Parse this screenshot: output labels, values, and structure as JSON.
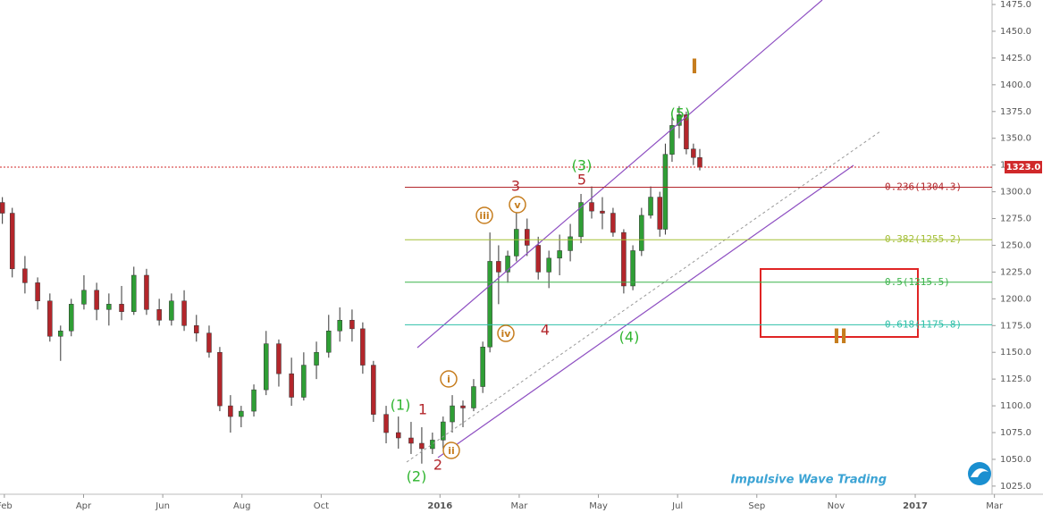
{
  "chart_data": {
    "type": "candlestick",
    "x": [
      0.95,
      1.2,
      1.52,
      1.84,
      2.15,
      2.42,
      2.69,
      3.01,
      3.33,
      3.64,
      3.96,
      4.27,
      4.59,
      4.91,
      5.22,
      5.54,
      5.85,
      6.17,
      6.44,
      6.71,
      6.98,
      7.3,
      7.61,
      7.93,
      8.25,
      8.56,
      8.88,
      9.19,
      9.47,
      9.78,
      10.05,
      10.32,
      10.64,
      10.95,
      11.27,
      11.54,
      11.81,
      12.08,
      12.31,
      12.58,
      12.85,
      13.08,
      13.26,
      13.48,
      13.71,
      13.93,
      14.2,
      14.48,
      14.75,
      15.02,
      15.29,
      15.56,
      15.83,
      16.1,
      16.37,
      16.64,
      16.87,
      17.09,
      17.32,
      17.55,
      17.69,
      17.86,
      18.04,
      18.22,
      18.4,
      18.56
    ],
    "open": [
      1290,
      1280,
      1228,
      1215,
      1198,
      1165,
      1170,
      1195,
      1208,
      1190,
      1195,
      1188,
      1222,
      1190,
      1180,
      1198,
      1175,
      1168,
      1150,
      1100,
      1090,
      1095,
      1115,
      1158,
      1130,
      1108,
      1138,
      1150,
      1170,
      1180,
      1172,
      1138,
      1092,
      1075,
      1070,
      1065,
      1060,
      1068,
      1085,
      1100,
      1098,
      1118,
      1155,
      1235,
      1225,
      1240,
      1265,
      1250,
      1225,
      1238,
      1245,
      1258,
      1290,
      1282,
      1280,
      1262,
      1212,
      1245,
      1278,
      1295,
      1265,
      1335,
      1362,
      1372,
      1340,
      1332
    ],
    "high": [
      1295,
      1285,
      1240,
      1220,
      1205,
      1175,
      1200,
      1222,
      1215,
      1205,
      1212,
      1230,
      1228,
      1200,
      1205,
      1208,
      1185,
      1175,
      1155,
      1110,
      1100,
      1120,
      1170,
      1162,
      1145,
      1150,
      1160,
      1185,
      1192,
      1190,
      1178,
      1142,
      1100,
      1090,
      1085,
      1080,
      1075,
      1090,
      1110,
      1105,
      1125,
      1160,
      1262,
      1250,
      1245,
      1280,
      1275,
      1258,
      1245,
      1260,
      1270,
      1298,
      1305,
      1295,
      1285,
      1265,
      1250,
      1285,
      1305,
      1300,
      1345,
      1370,
      1380,
      1375,
      1345,
      1340
    ],
    "low": [
      1270,
      1220,
      1205,
      1190,
      1160,
      1142,
      1165,
      1190,
      1180,
      1175,
      1180,
      1185,
      1185,
      1175,
      1175,
      1170,
      1160,
      1145,
      1095,
      1075,
      1080,
      1090,
      1110,
      1118,
      1100,
      1105,
      1125,
      1145,
      1160,
      1160,
      1130,
      1085,
      1065,
      1060,
      1055,
      1046,
      1055,
      1060,
      1075,
      1080,
      1095,
      1112,
      1150,
      1195,
      1215,
      1235,
      1240,
      1218,
      1210,
      1222,
      1235,
      1252,
      1275,
      1265,
      1258,
      1205,
      1208,
      1240,
      1275,
      1258,
      1260,
      1328,
      1350,
      1335,
      1325,
      1320
    ],
    "close": [
      1280,
      1228,
      1215,
      1198,
      1165,
      1170,
      1195,
      1208,
      1190,
      1195,
      1188,
      1222,
      1190,
      1180,
      1198,
      1175,
      1168,
      1150,
      1100,
      1090,
      1095,
      1115,
      1158,
      1130,
      1108,
      1138,
      1150,
      1170,
      1180,
      1172,
      1138,
      1092,
      1075,
      1070,
      1065,
      1060,
      1068,
      1085,
      1100,
      1098,
      1118,
      1155,
      1235,
      1225,
      1240,
      1265,
      1250,
      1225,
      1238,
      1245,
      1258,
      1290,
      1282,
      1280,
      1262,
      1212,
      1245,
      1278,
      1295,
      1265,
      1335,
      1362,
      1372,
      1340,
      1332,
      1323
    ],
    "up_color": "#2f9e35",
    "down_color": "#b3262b",
    "xlim": [
      0.89,
      25.94
    ],
    "xticks": [
      {
        "value": 1,
        "label": "Feb"
      },
      {
        "value": 3,
        "label": "Apr"
      },
      {
        "value": 5,
        "label": "Jun"
      },
      {
        "value": 7,
        "label": "Aug"
      },
      {
        "value": 9,
        "label": "Oct"
      },
      {
        "value": 12,
        "label": "2016"
      },
      {
        "value": 14,
        "label": "Mar"
      },
      {
        "value": 16,
        "label": "May"
      },
      {
        "value": 18,
        "label": "Jul"
      },
      {
        "value": 20,
        "label": "Sep"
      },
      {
        "value": 22,
        "label": "Nov"
      },
      {
        "value": 24,
        "label": "2017"
      },
      {
        "value": 26,
        "label": "Mar"
      }
    ],
    "ylim": [
      1017.4,
      1479.2
    ],
    "yticks": [
      {
        "value": 1025,
        "label": "1025.0"
      },
      {
        "value": 1050,
        "label": "1050.0"
      },
      {
        "value": 1075,
        "label": "1075.0"
      },
      {
        "value": 1100,
        "label": "1100.0"
      },
      {
        "value": 1125,
        "label": "1125.0"
      },
      {
        "value": 1150,
        "label": "1150.0"
      },
      {
        "value": 1175,
        "label": "1175.0"
      },
      {
        "value": 1200,
        "label": "1200.0"
      },
      {
        "value": 1225,
        "label": "1225.0"
      },
      {
        "value": 1250,
        "label": "1250.0"
      },
      {
        "value": 1275,
        "label": "1275.0"
      },
      {
        "value": 1300,
        "label": "1300.0"
      },
      {
        "value": 1325,
        "label": "1325.0"
      },
      {
        "value": 1350,
        "label": "1350.0"
      },
      {
        "value": 1375,
        "label": "1375.0"
      },
      {
        "value": 1400,
        "label": "1400.0"
      },
      {
        "value": 1425,
        "label": "1425.0"
      },
      {
        "value": 1450,
        "label": "1450.0"
      },
      {
        "value": 1475,
        "label": "1475.0"
      }
    ],
    "grid": false,
    "last_price": {
      "value": 1323,
      "label": "1323.0",
      "color": "#d0282a"
    },
    "fib_levels": [
      {
        "value": 1304.3,
        "label": "0.236(1304.3)",
        "color": "#b3262b"
      },
      {
        "value": 1255.2,
        "label": "0.382(1255.2)",
        "color": "#a4bf36"
      },
      {
        "value": 1215.5,
        "label": "0.5(1215.5)",
        "color": "#3cb44b"
      },
      {
        "value": 1175.8,
        "label": "0.618(1175.8)",
        "color": "#2fbfa8"
      }
    ],
    "annotations": [
      "(1)",
      "1",
      "(2)",
      "2",
      "i",
      "ii",
      "iii",
      "iv",
      "v",
      "3",
      "4",
      "(3)",
      "5",
      "(4)",
      "(5)",
      "I",
      "II"
    ],
    "watermark": "Impulsive Wave Trading"
  }
}
